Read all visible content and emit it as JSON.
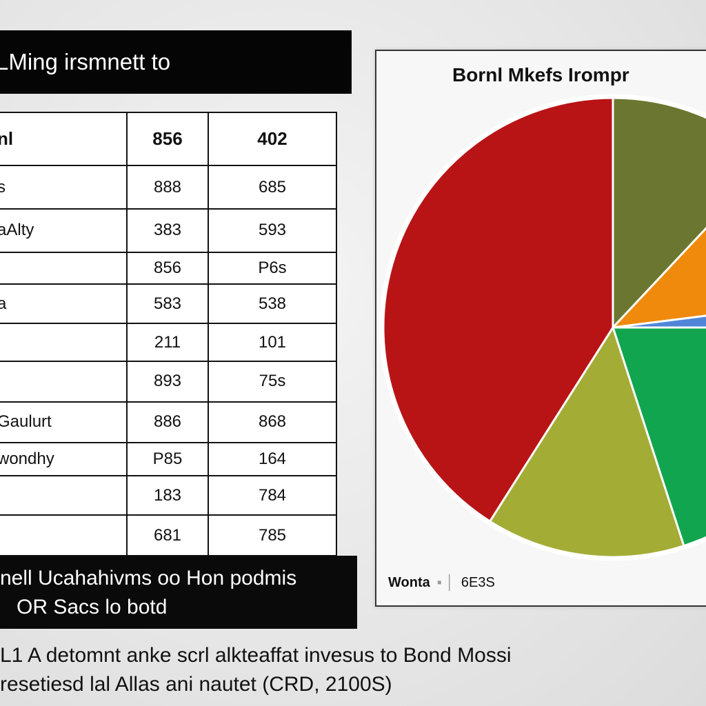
{
  "title_bar": "LMing irsmnett to",
  "table": {
    "header": [
      "nl",
      "856",
      "402"
    ],
    "rows": [
      [
        "s",
        "888",
        "685"
      ],
      [
        "aAlty",
        "383",
        "593"
      ],
      [
        "",
        "856",
        "P6s"
      ],
      [
        "a",
        "583",
        "538"
      ],
      [
        "",
        "211",
        "101"
      ],
      [
        "",
        "893",
        "75s"
      ],
      [
        "Gaulurt",
        "886",
        "868"
      ],
      [
        "wondhy",
        "P85",
        "164"
      ],
      [
        "",
        "183",
        "784"
      ],
      [
        "",
        "681",
        "785"
      ]
    ]
  },
  "note": {
    "line1": "nell Ucahahivms oo Hon podmis",
    "line2": "OR Sacs lo botd"
  },
  "chart_title": "Bornl Mkefs Irompr",
  "legend": {
    "label": "Wonta",
    "value": "6E3S"
  },
  "caption": {
    "line1": "L1 A detomnt anke scrl alkteaffat invesus to Bond Mossi",
    "line2": "resetiesd lal Allas ani nautet (CRD, 2100S)"
  },
  "chart_data": {
    "type": "pie",
    "title": "Bornl Mkefs Irompr",
    "slices": [
      {
        "value": 41,
        "color": "#b81416"
      },
      {
        "value": 12,
        "color": "#6b7630"
      },
      {
        "value": 11,
        "color": "#ef8a0c"
      },
      {
        "value": 2,
        "color": "#4f86d8"
      },
      {
        "value": 20,
        "color": "#12a54f"
      },
      {
        "value": 14,
        "color": "#a3ad36"
      }
    ]
  }
}
